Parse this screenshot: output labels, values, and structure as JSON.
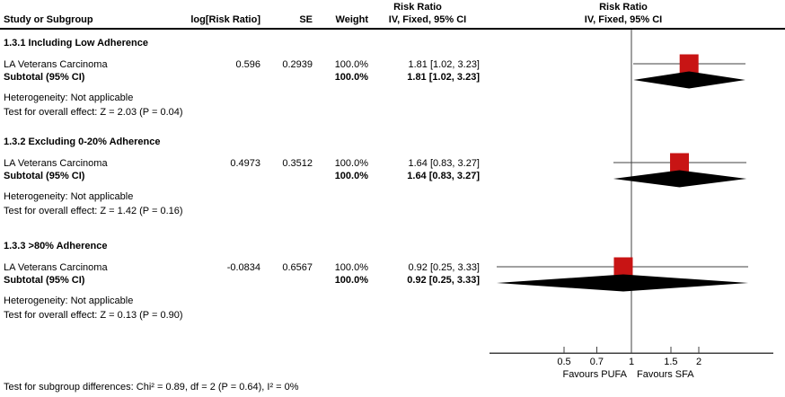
{
  "table": {
    "headers": {
      "study": "Study or Subgroup",
      "log_rr": "log[Risk Ratio]",
      "se": "SE",
      "weight": "Weight",
      "effect_line1": "Risk Ratio",
      "effect_line2": "IV, Fixed, 95% CI"
    },
    "plot_headers": {
      "line1": "Risk Ratio",
      "line2": "IV, Fixed, 95% CI"
    }
  },
  "chart_data": {
    "type": "forest",
    "effect_measure": "Risk Ratio",
    "model": "IV, Fixed, 95% CI",
    "x_scale": "log",
    "axis": {
      "ticks": [
        0.5,
        0.7,
        1,
        1.5,
        2
      ],
      "tick_labels": [
        "0.5",
        "0.7",
        "1",
        "1.5",
        "2"
      ],
      "null_value": 1,
      "left_label": "Favours PUFA",
      "right_label": "Favours SFA"
    },
    "subgroups": [
      {
        "title": "1.3.1 Including Low Adherence",
        "study": {
          "name": "LA Veterans Carcinoma",
          "log_rr": "0.596",
          "se": "0.2939",
          "weight": "100.0%",
          "estimate_text": "1.81 [1.02, 3.23]",
          "rr": 1.81,
          "ci_low": 1.02,
          "ci_high": 3.23
        },
        "subtotal": {
          "label": "Subtotal (95% CI)",
          "weight": "100.0%",
          "estimate_text": "1.81 [1.02, 3.23]",
          "rr": 1.81,
          "ci_low": 1.02,
          "ci_high": 3.23
        },
        "heterogeneity": "Heterogeneity: Not applicable",
        "overall_effect": "Test for overall effect: Z = 2.03 (P = 0.04)"
      },
      {
        "title": "1.3.2 Excluding 0-20% Adherence",
        "study": {
          "name": "LA Veterans Carcinoma",
          "log_rr": "0.4973",
          "se": "0.3512",
          "weight": "100.0%",
          "estimate_text": "1.64 [0.83, 3.27]",
          "rr": 1.64,
          "ci_low": 0.83,
          "ci_high": 3.27
        },
        "subtotal": {
          "label": "Subtotal (95% CI)",
          "weight": "100.0%",
          "estimate_text": "1.64 [0.83, 3.27]",
          "rr": 1.64,
          "ci_low": 0.83,
          "ci_high": 3.27
        },
        "heterogeneity": "Heterogeneity: Not applicable",
        "overall_effect": "Test for overall effect: Z = 1.42 (P = 0.16)"
      },
      {
        "title": "1.3.3 >80% Adherence",
        "study": {
          "name": "LA Veterans Carcinoma",
          "log_rr": "-0.0834",
          "se": "0.6567",
          "weight": "100.0%",
          "estimate_text": "0.92 [0.25, 3.33]",
          "rr": 0.92,
          "ci_low": 0.25,
          "ci_high": 3.33
        },
        "subtotal": {
          "label": "Subtotal (95% CI)",
          "weight": "100.0%",
          "estimate_text": "0.92 [0.25, 3.33]",
          "rr": 0.92,
          "ci_low": 0.25,
          "ci_high": 3.33
        },
        "heterogeneity": "Heterogeneity: Not applicable",
        "overall_effect": "Test for overall effect: Z = 0.13 (P = 0.90)"
      }
    ],
    "footer": "Test for subgroup differences: Chi² = 0.89, df = 2 (P = 0.64), I² = 0%"
  },
  "colors": {
    "marker_square": "#c81414",
    "ci_line": "#404040",
    "axis_line": "#404040",
    "diamond": "#000000",
    "text": "#000000"
  }
}
